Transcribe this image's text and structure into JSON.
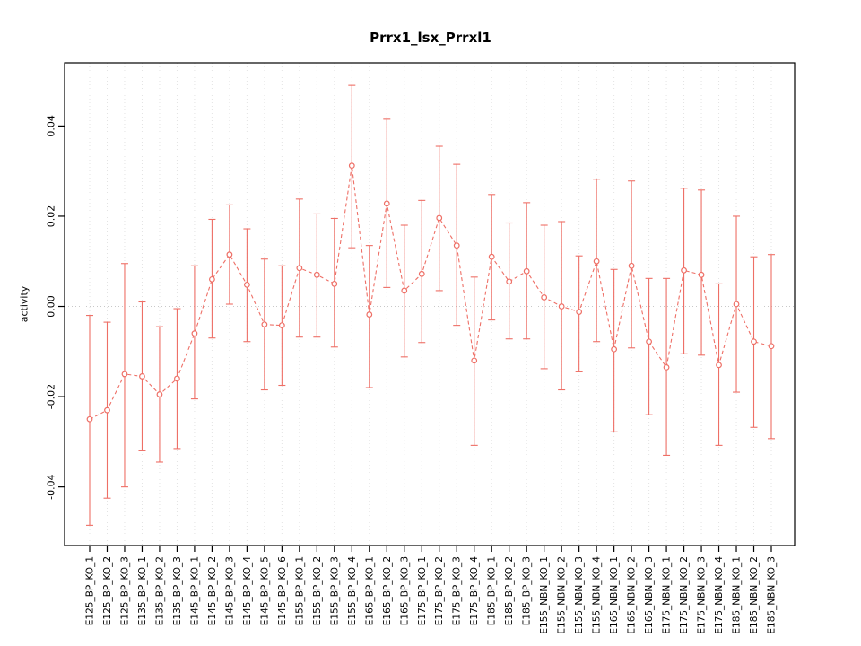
{
  "chart_data": {
    "type": "line",
    "title": "Prrx1_lsx_Prrxl1",
    "xlabel": "",
    "ylabel": "activity",
    "ylim": [
      -0.053,
      0.054
    ],
    "yticks": [
      -0.04,
      -0.02,
      0.0,
      0.02,
      0.04
    ],
    "grid": "vertical-dotted",
    "zero_line": true,
    "legend": "none",
    "point_style": "open-circle",
    "line_style": "dashed",
    "error_bars": true,
    "color": "#ee6f66",
    "grid_color": "#e3e3e3",
    "zero_line_color": "#c8c8c8",
    "categories": [
      "E125_BP_KO_1",
      "E125_BP_KO_2",
      "E125_BP_KO_3",
      "E135_BP_KO_1",
      "E135_BP_KO_2",
      "E135_BP_KO_3",
      "E145_BP_KO_1",
      "E145_BP_KO_2",
      "E145_BP_KO_3",
      "E145_BP_KO_4",
      "E145_BP_KO_5",
      "E145_BP_KO_6",
      "E155_BP_KO_1",
      "E155_BP_KO_2",
      "E155_BP_KO_3",
      "E155_BP_KO_4",
      "E165_BP_KO_1",
      "E165_BP_KO_2",
      "E165_BP_KO_3",
      "E175_BP_KO_1",
      "E175_BP_KO_2",
      "E175_BP_KO_3",
      "E175_BP_KO_4",
      "E185_BP_KO_1",
      "E185_BP_KO_2",
      "E185_BP_KO_3",
      "E155_NBN_KO_1",
      "E155_NBN_KO_2",
      "E155_NBN_KO_3",
      "E155_NBN_KO_4",
      "E165_NBN_KO_1",
      "E165_NBN_KO_2",
      "E165_NBN_KO_3",
      "E175_NBN_KO_1",
      "E175_NBN_KO_2",
      "E175_NBN_KO_3",
      "E175_NBN_KO_4",
      "E185_NBN_KO_1",
      "E185_NBN_KO_2",
      "E185_NBN_KO_3"
    ],
    "series": [
      {
        "name": "activity",
        "values": [
          -0.025,
          -0.023,
          -0.015,
          -0.0155,
          -0.0195,
          -0.016,
          -0.006,
          0.006,
          0.0115,
          0.0048,
          -0.004,
          -0.0042,
          0.0085,
          0.007,
          0.005,
          0.0312,
          -0.0018,
          0.0228,
          0.0035,
          0.0072,
          0.0196,
          0.0135,
          -0.012,
          0.011,
          0.0055,
          0.0078,
          0.002,
          0.0,
          -0.0012,
          0.01,
          -0.0095,
          0.009,
          -0.0078,
          -0.0135,
          0.008,
          0.007,
          -0.013,
          0.0005,
          -0.0078,
          -0.0088
        ],
        "lower": [
          -0.0485,
          -0.0425,
          -0.04,
          -0.032,
          -0.0345,
          -0.0315,
          -0.0205,
          -0.007,
          0.0005,
          -0.0078,
          -0.0185,
          -0.0175,
          -0.0068,
          -0.0068,
          -0.009,
          0.013,
          -0.018,
          0.0042,
          -0.0112,
          -0.008,
          0.0035,
          -0.0042,
          -0.0308,
          -0.003,
          -0.0072,
          -0.0072,
          -0.0138,
          -0.0185,
          -0.0145,
          -0.0078,
          -0.0278,
          -0.0092,
          -0.024,
          -0.033,
          -0.0105,
          -0.0108,
          -0.0308,
          -0.019,
          -0.0268,
          -0.0293
        ],
        "upper": [
          -0.002,
          -0.0035,
          0.0095,
          0.001,
          -0.0045,
          -0.0005,
          0.009,
          0.0193,
          0.0225,
          0.0172,
          0.0105,
          0.009,
          0.0238,
          0.0205,
          0.0195,
          0.049,
          0.0135,
          0.0415,
          0.018,
          0.0235,
          0.0355,
          0.0315,
          0.0065,
          0.0248,
          0.0185,
          0.023,
          0.018,
          0.0188,
          0.0112,
          0.0282,
          0.0082,
          0.0278,
          0.0062,
          0.0062,
          0.0262,
          0.0258,
          0.005,
          0.02,
          0.011,
          0.0115
        ]
      }
    ]
  }
}
